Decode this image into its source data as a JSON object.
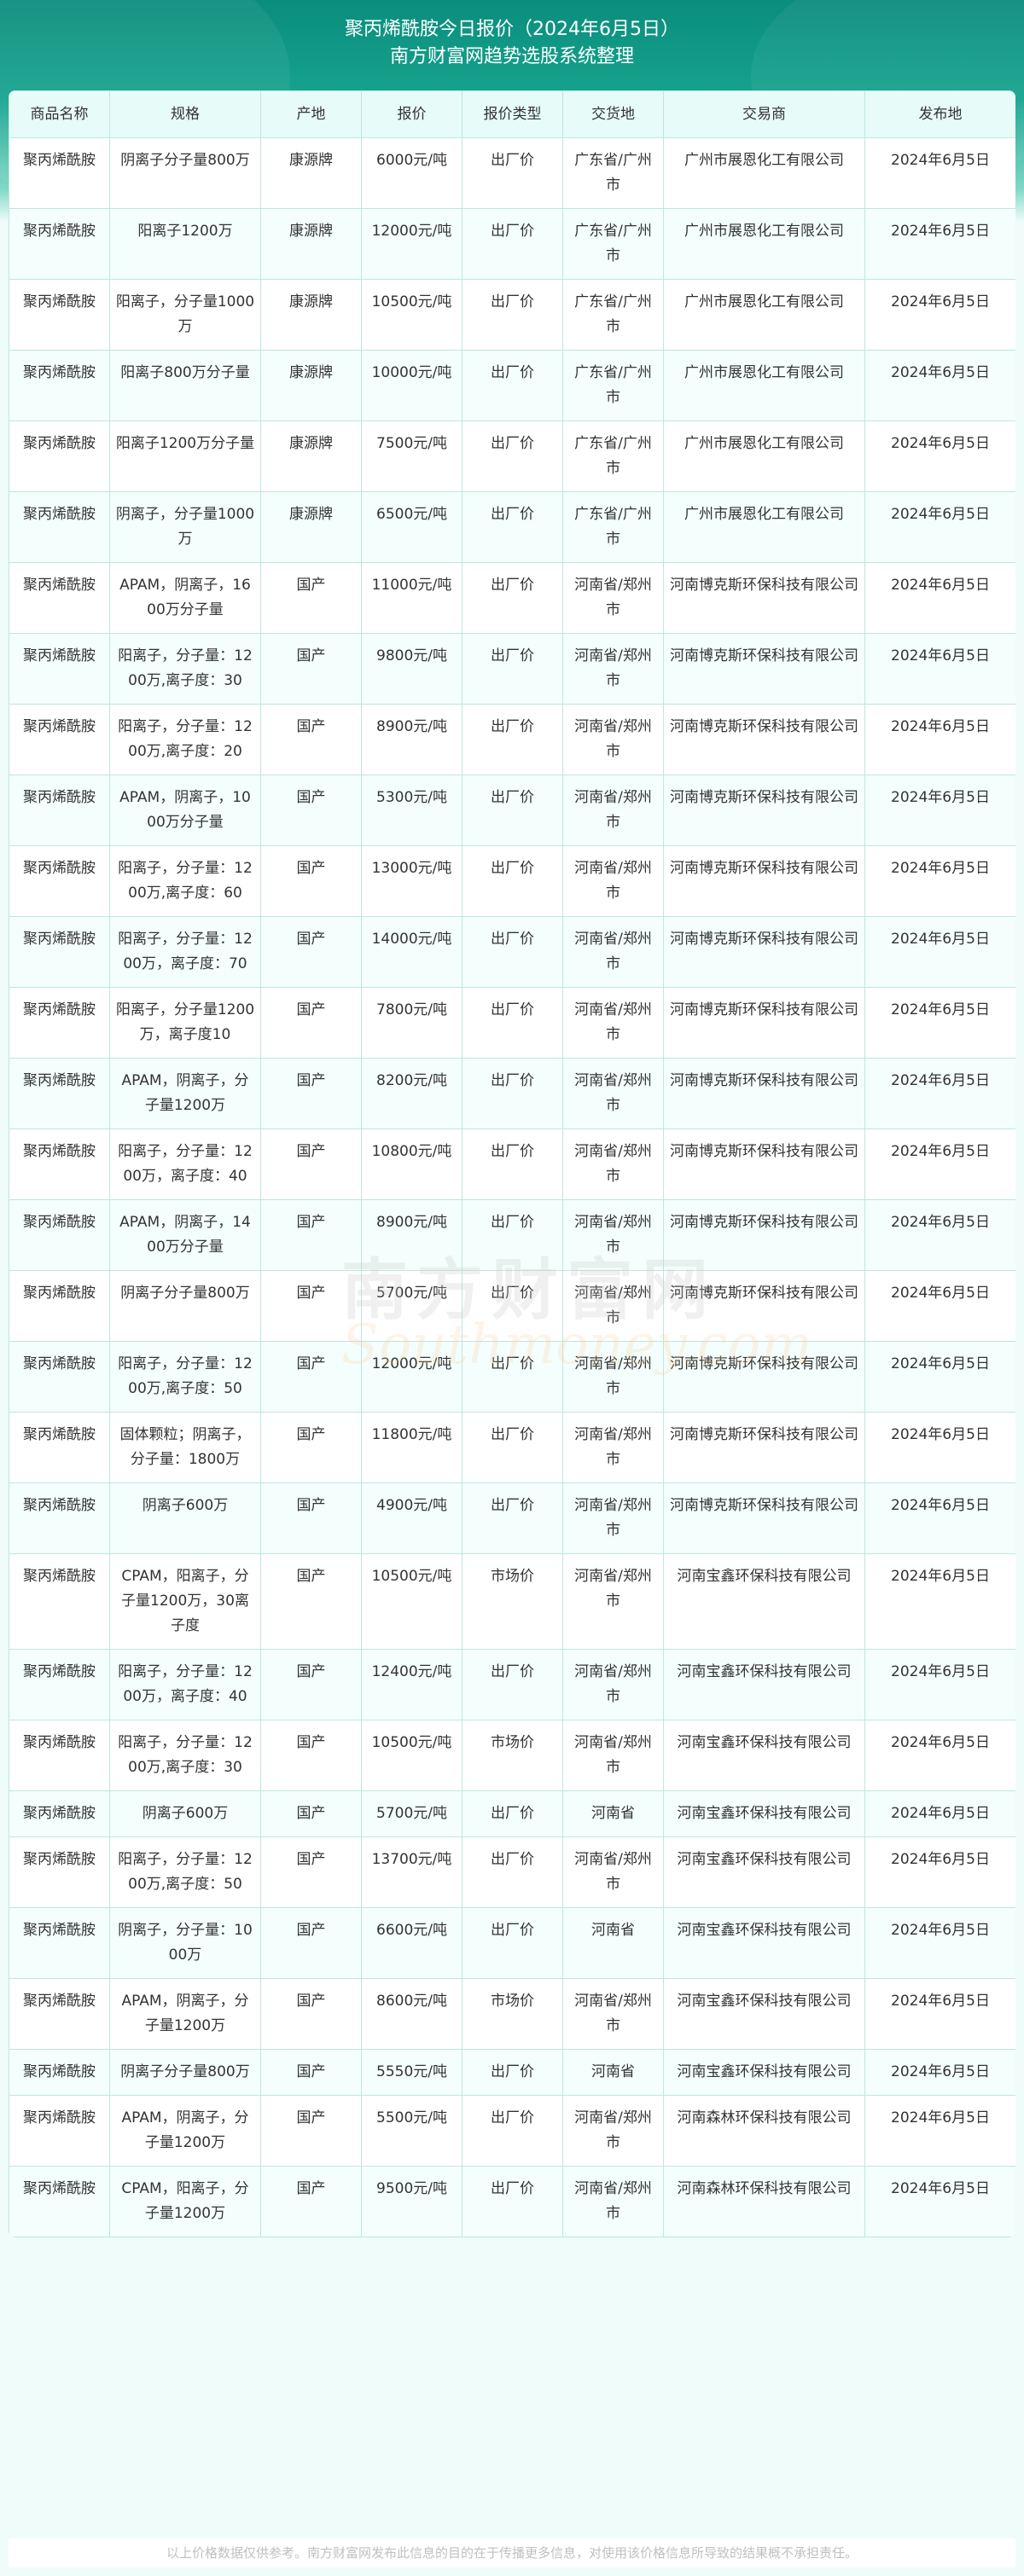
{
  "header": {
    "title": "聚丙烯酰胺今日报价（2024年6月5日）",
    "subtitle": "南方财富网趋势选股系统整理"
  },
  "table": {
    "columns": [
      "商品名称",
      "规格",
      "产地",
      "报价",
      "报价类型",
      "交货地",
      "交易商",
      "发布地"
    ],
    "rows": [
      [
        "聚丙烯酰胺",
        "阴离子分子量800万",
        "康源牌",
        "6000元/吨",
        "出厂价",
        "广东省/广州市",
        "广州市展恩化工有限公司",
        "2024年6月5日"
      ],
      [
        "聚丙烯酰胺",
        "阳离子1200万",
        "康源牌",
        "12000元/吨",
        "出厂价",
        "广东省/广州市",
        "广州市展恩化工有限公司",
        "2024年6月5日"
      ],
      [
        "聚丙烯酰胺",
        "阳离子，分子量1000万",
        "康源牌",
        "10500元/吨",
        "出厂价",
        "广东省/广州市",
        "广州市展恩化工有限公司",
        "2024年6月5日"
      ],
      [
        "聚丙烯酰胺",
        "阳离子800万分子量",
        "康源牌",
        "10000元/吨",
        "出厂价",
        "广东省/广州市",
        "广州市展恩化工有限公司",
        "2024年6月5日"
      ],
      [
        "聚丙烯酰胺",
        "阳离子1200万分子量",
        "康源牌",
        "7500元/吨",
        "出厂价",
        "广东省/广州市",
        "广州市展恩化工有限公司",
        "2024年6月5日"
      ],
      [
        "聚丙烯酰胺",
        "阴离子，分子量1000万",
        "康源牌",
        "6500元/吨",
        "出厂价",
        "广东省/广州市",
        "广州市展恩化工有限公司",
        "2024年6月5日"
      ],
      [
        "聚丙烯酰胺",
        "APAM，阴离子，1600万分子量",
        "国产",
        "11000元/吨",
        "出厂价",
        "河南省/郑州市",
        "河南博克斯环保科技有限公司",
        "2024年6月5日"
      ],
      [
        "聚丙烯酰胺",
        "阳离子，分子量：1200万,离子度：30",
        "国产",
        "9800元/吨",
        "出厂价",
        "河南省/郑州市",
        "河南博克斯环保科技有限公司",
        "2024年6月5日"
      ],
      [
        "聚丙烯酰胺",
        "阳离子，分子量：1200万,离子度：20",
        "国产",
        "8900元/吨",
        "出厂价",
        "河南省/郑州市",
        "河南博克斯环保科技有限公司",
        "2024年6月5日"
      ],
      [
        "聚丙烯酰胺",
        "APAM，阴离子，1000万分子量",
        "国产",
        "5300元/吨",
        "出厂价",
        "河南省/郑州市",
        "河南博克斯环保科技有限公司",
        "2024年6月5日"
      ],
      [
        "聚丙烯酰胺",
        "阳离子，分子量：1200万,离子度：60",
        "国产",
        "13000元/吨",
        "出厂价",
        "河南省/郑州市",
        "河南博克斯环保科技有限公司",
        "2024年6月5日"
      ],
      [
        "聚丙烯酰胺",
        "阳离子，分子量：1200万，离子度：70",
        "国产",
        "14000元/吨",
        "出厂价",
        "河南省/郑州市",
        "河南博克斯环保科技有限公司",
        "2024年6月5日"
      ],
      [
        "聚丙烯酰胺",
        "阳离子，分子量1200万，离子度10",
        "国产",
        "7800元/吨",
        "出厂价",
        "河南省/郑州市",
        "河南博克斯环保科技有限公司",
        "2024年6月5日"
      ],
      [
        "聚丙烯酰胺",
        "APAM，阴离子，分子量1200万",
        "国产",
        "8200元/吨",
        "出厂价",
        "河南省/郑州市",
        "河南博克斯环保科技有限公司",
        "2024年6月5日"
      ],
      [
        "聚丙烯酰胺",
        "阳离子，分子量：1200万，离子度：40",
        "国产",
        "10800元/吨",
        "出厂价",
        "河南省/郑州市",
        "河南博克斯环保科技有限公司",
        "2024年6月5日"
      ],
      [
        "聚丙烯酰胺",
        "APAM，阴离子，1400万分子量",
        "国产",
        "8900元/吨",
        "出厂价",
        "河南省/郑州市",
        "河南博克斯环保科技有限公司",
        "2024年6月5日"
      ],
      [
        "聚丙烯酰胺",
        "阴离子分子量800万",
        "国产",
        "5700元/吨",
        "出厂价",
        "河南省/郑州市",
        "河南博克斯环保科技有限公司",
        "2024年6月5日"
      ],
      [
        "聚丙烯酰胺",
        "阳离子，分子量：1200万,离子度：50",
        "国产",
        "12000元/吨",
        "出厂价",
        "河南省/郑州市",
        "河南博克斯环保科技有限公司",
        "2024年6月5日"
      ],
      [
        "聚丙烯酰胺",
        "固体颗粒；阴离子，分子量：1800万",
        "国产",
        "11800元/吨",
        "出厂价",
        "河南省/郑州市",
        "河南博克斯环保科技有限公司",
        "2024年6月5日"
      ],
      [
        "聚丙烯酰胺",
        "阴离子600万",
        "国产",
        "4900元/吨",
        "出厂价",
        "河南省/郑州市",
        "河南博克斯环保科技有限公司",
        "2024年6月5日"
      ],
      [
        "聚丙烯酰胺",
        "CPAM，阳离子，分子量1200万，30离子度",
        "国产",
        "10500元/吨",
        "市场价",
        "河南省/郑州市",
        "河南宝鑫环保科技有限公司",
        "2024年6月5日"
      ],
      [
        "聚丙烯酰胺",
        "阳离子，分子量：1200万，离子度：40",
        "国产",
        "12400元/吨",
        "出厂价",
        "河南省/郑州市",
        "河南宝鑫环保科技有限公司",
        "2024年6月5日"
      ],
      [
        "聚丙烯酰胺",
        "阳离子，分子量：1200万,离子度：30",
        "国产",
        "10500元/吨",
        "市场价",
        "河南省/郑州市",
        "河南宝鑫环保科技有限公司",
        "2024年6月5日"
      ],
      [
        "聚丙烯酰胺",
        "阴离子600万",
        "国产",
        "5700元/吨",
        "出厂价",
        "河南省",
        "河南宝鑫环保科技有限公司",
        "2024年6月5日"
      ],
      [
        "聚丙烯酰胺",
        "阳离子，分子量：1200万,离子度：50",
        "国产",
        "13700元/吨",
        "出厂价",
        "河南省/郑州市",
        "河南宝鑫环保科技有限公司",
        "2024年6月5日"
      ],
      [
        "聚丙烯酰胺",
        "阴离子，分子量：1000万",
        "国产",
        "6600元/吨",
        "出厂价",
        "河南省",
        "河南宝鑫环保科技有限公司",
        "2024年6月5日"
      ],
      [
        "聚丙烯酰胺",
        "APAM，阴离子，分子量1200万",
        "国产",
        "8600元/吨",
        "市场价",
        "河南省/郑州市",
        "河南宝鑫环保科技有限公司",
        "2024年6月5日"
      ],
      [
        "聚丙烯酰胺",
        "阴离子分子量800万",
        "国产",
        "5550元/吨",
        "出厂价",
        "河南省",
        "河南宝鑫环保科技有限公司",
        "2024年6月5日"
      ],
      [
        "聚丙烯酰胺",
        "APAM，阴离子，分子量1200万",
        "国产",
        "5500元/吨",
        "出厂价",
        "河南省/郑州市",
        "河南森林环保科技有限公司",
        "2024年6月5日"
      ],
      [
        "聚丙烯酰胺",
        "CPAM，阳离子，分子量1200万",
        "国产",
        "9500元/吨",
        "出厂价",
        "河南省/郑州市",
        "河南森林环保科技有限公司",
        "2024年6月5日"
      ]
    ]
  },
  "watermark": {
    "cn": "南方财富网",
    "en": "Southmoney.com"
  },
  "footer": {
    "disclaimer": "以上价格数据仅供参考。南方财富网发布此信息的目的在于传播更多信息，对使用该价格信息所导致的结果概不承担责任。"
  }
}
